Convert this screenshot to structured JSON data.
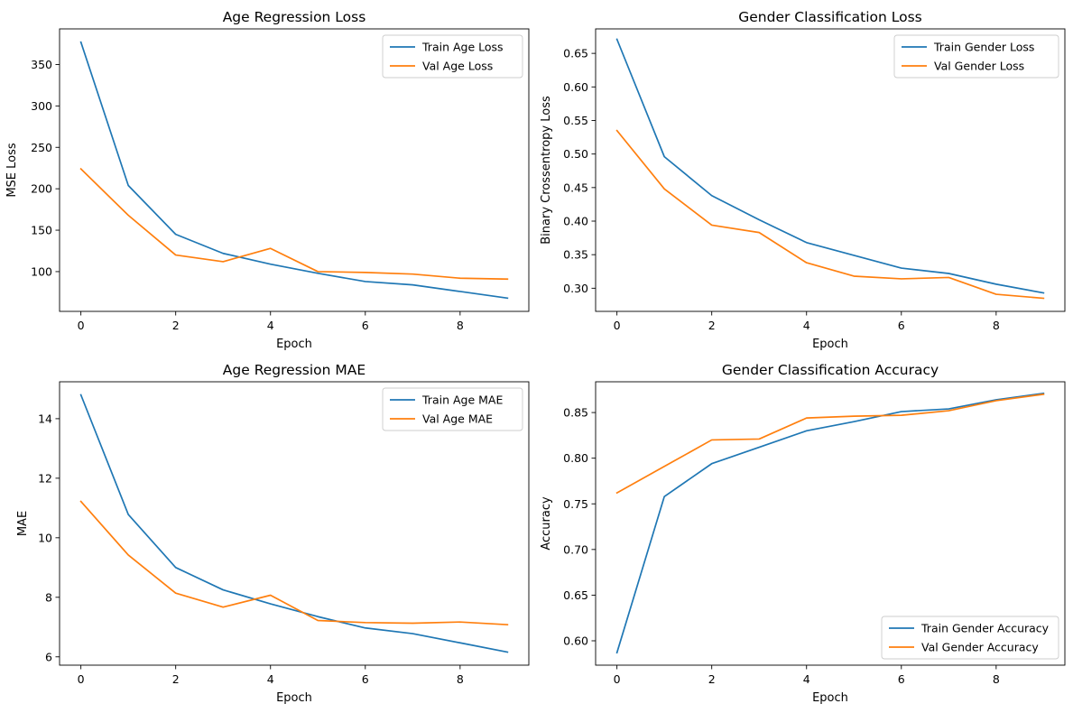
{
  "colors": {
    "train": "#1f77b4",
    "val": "#ff7f0e"
  },
  "chart_data": [
    {
      "type": "line",
      "title": "Age Regression Loss",
      "xlabel": "Epoch",
      "ylabel": "MSE Loss",
      "xlim": [
        -0.45,
        9.45
      ],
      "ylim": [
        52,
        393
      ],
      "xticks": [
        0,
        2,
        4,
        6,
        8
      ],
      "yticks": [
        100,
        150,
        200,
        250,
        300,
        350
      ],
      "legend": "top-right",
      "grid": false,
      "x": [
        0,
        1,
        2,
        3,
        4,
        5,
        6,
        7,
        8,
        9
      ],
      "series": [
        {
          "name": "Train Age Loss",
          "color": "#1f77b4",
          "values": [
            377,
            204,
            145,
            122,
            109,
            98,
            88,
            84,
            76,
            68
          ]
        },
        {
          "name": "Val Age Loss",
          "color": "#ff7f0e",
          "values": [
            224,
            168,
            120,
            112,
            128,
            100,
            99,
            97,
            92,
            91
          ]
        }
      ]
    },
    {
      "type": "line",
      "title": "Gender Classification Loss",
      "xlabel": "Epoch",
      "ylabel": "Binary Crossentropy Loss",
      "xlim": [
        -0.45,
        9.45
      ],
      "ylim": [
        0.2655,
        0.6865
      ],
      "xticks": [
        0,
        2,
        4,
        6,
        8
      ],
      "yticks": [
        0.3,
        0.35,
        0.4,
        0.45,
        0.5,
        0.55,
        0.6,
        0.65
      ],
      "yticklabels": [
        "0.30",
        "0.35",
        "0.40",
        "0.45",
        "0.50",
        "0.55",
        "0.60",
        "0.65"
      ],
      "legend": "top-right",
      "grid": false,
      "x": [
        0,
        1,
        2,
        3,
        4,
        5,
        6,
        7,
        8,
        9
      ],
      "series": [
        {
          "name": "Train Gender Loss",
          "color": "#1f77b4",
          "values": [
            0.671,
            0.496,
            0.438,
            0.402,
            0.368,
            0.349,
            0.33,
            0.322,
            0.306,
            0.293
          ]
        },
        {
          "name": "Val Gender Loss",
          "color": "#ff7f0e",
          "values": [
            0.535,
            0.448,
            0.394,
            0.383,
            0.338,
            0.318,
            0.314,
            0.316,
            0.291,
            0.285
          ]
        }
      ]
    },
    {
      "type": "line",
      "title": "Age Regression MAE",
      "xlabel": "Epoch",
      "ylabel": "MAE",
      "xlim": [
        -0.45,
        9.45
      ],
      "ylim": [
        5.72,
        15.24
      ],
      "xticks": [
        0,
        2,
        4,
        6,
        8
      ],
      "yticks": [
        6,
        8,
        10,
        12,
        14
      ],
      "legend": "top-right",
      "grid": false,
      "x": [
        0,
        1,
        2,
        3,
        4,
        5,
        6,
        7,
        8,
        9
      ],
      "series": [
        {
          "name": "Train Age MAE",
          "color": "#1f77b4",
          "values": [
            14.8,
            10.78,
            9.0,
            8.25,
            7.78,
            7.35,
            6.97,
            6.78,
            6.47,
            6.16
          ]
        },
        {
          "name": "Val Age MAE",
          "color": "#ff7f0e",
          "values": [
            11.22,
            9.42,
            8.14,
            7.67,
            8.07,
            7.22,
            7.15,
            7.13,
            7.17,
            7.08
          ]
        }
      ]
    },
    {
      "type": "line",
      "title": "Gender Classification Accuracy",
      "xlabel": "Epoch",
      "ylabel": "Accuracy",
      "xlim": [
        -0.45,
        9.45
      ],
      "ylim": [
        0.5733,
        0.8837
      ],
      "xticks": [
        0,
        2,
        4,
        6,
        8
      ],
      "yticks": [
        0.6,
        0.65,
        0.7,
        0.75,
        0.8,
        0.85
      ],
      "yticklabels": [
        "0.60",
        "0.65",
        "0.70",
        "0.75",
        "0.80",
        "0.85"
      ],
      "legend": "bottom-right",
      "grid": false,
      "x": [
        0,
        1,
        2,
        3,
        4,
        5,
        6,
        7,
        8,
        9
      ],
      "series": [
        {
          "name": "Train Gender Accuracy",
          "color": "#1f77b4",
          "values": [
            0.587,
            0.758,
            0.794,
            0.812,
            0.83,
            0.84,
            0.851,
            0.854,
            0.864,
            0.871
          ]
        },
        {
          "name": "Val Gender Accuracy",
          "color": "#ff7f0e",
          "values": [
            0.762,
            0.791,
            0.82,
            0.821,
            0.844,
            0.846,
            0.847,
            0.852,
            0.863,
            0.87
          ]
        }
      ]
    }
  ]
}
